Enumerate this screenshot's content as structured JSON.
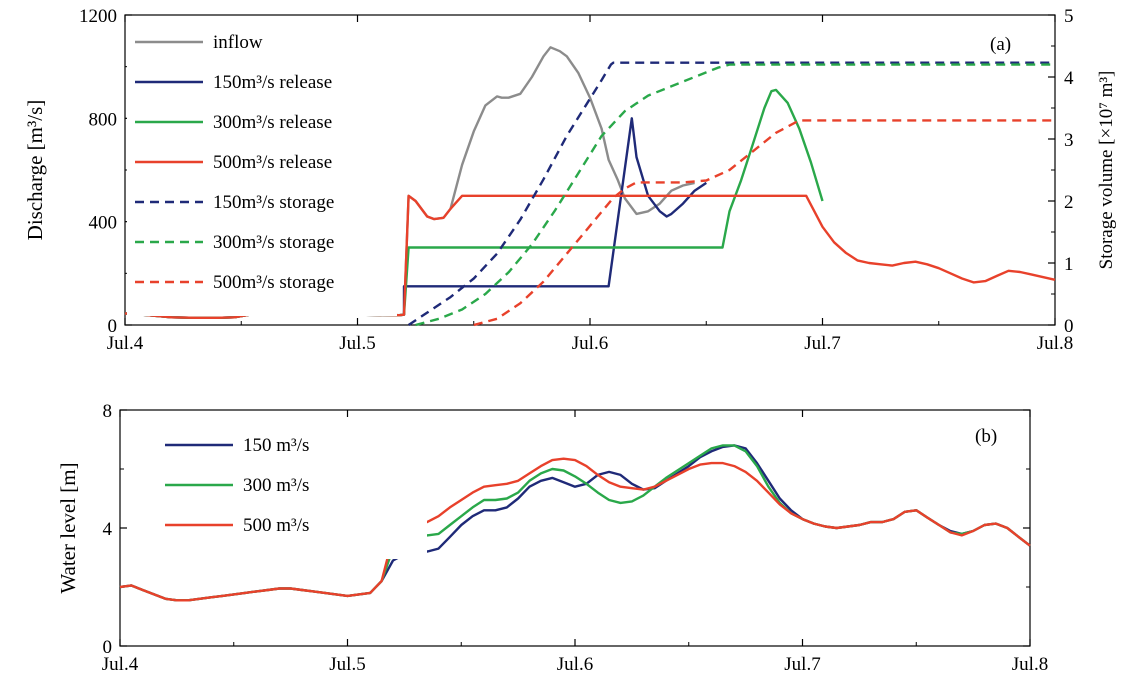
{
  "chart_data": [
    {
      "panel_label": "(a)",
      "type": "line",
      "x_ticks": [
        "Jul.4",
        "Jul.5",
        "Jul.6",
        "Jul.7",
        "Jul.8"
      ],
      "xlim": [
        4,
        8
      ],
      "ylabel_left": "Discharge [m³/s]",
      "ylim_left": [
        0,
        1200
      ],
      "yticks_left": [
        "0",
        "400",
        "800",
        "1200"
      ],
      "ylabel_right": "Storage volume [×10⁷ m³]",
      "ylim_right": [
        0,
        5
      ],
      "yticks_right": [
        "0",
        "1",
        "2",
        "3",
        "4",
        "5"
      ],
      "series": [
        {
          "name": "inflow",
          "axis": "left",
          "style": "solid",
          "color": "#8c8c8c",
          "x": [
            4.0,
            4.1,
            4.2,
            4.3,
            4.4,
            4.47,
            4.6,
            4.8,
            5.0,
            5.18,
            5.2,
            5.22,
            5.25,
            5.3,
            5.33,
            5.37,
            5.4,
            5.45,
            5.5,
            5.55,
            5.6,
            5.62,
            5.65,
            5.7,
            5.75,
            5.8,
            5.83,
            5.87,
            5.9,
            5.95,
            6.0,
            6.05,
            6.08,
            6.12,
            6.15,
            6.2,
            6.25,
            6.3,
            6.33,
            6.35,
            6.4,
            6.45
          ],
          "y": [
            45,
            38,
            30,
            28,
            28,
            30,
            50,
            45,
            40,
            38,
            40,
            500,
            480,
            420,
            410,
            415,
            450,
            620,
            750,
            850,
            885,
            880,
            880,
            895,
            960,
            1040,
            1075,
            1060,
            1040,
            975,
            880,
            760,
            640,
            560,
            490,
            430,
            440,
            470,
            500,
            520,
            540,
            550
          ]
        },
        {
          "name": "150m³/s release",
          "axis": "left",
          "style": "solid",
          "color": "#1f2a78",
          "x": [
            4.0,
            4.1,
            4.2,
            4.3,
            4.4,
            4.47,
            4.6,
            4.8,
            5.0,
            5.18,
            5.2,
            5.2,
            6.08,
            6.18,
            6.2,
            6.25,
            6.3,
            6.33,
            6.35,
            6.4,
            6.45,
            6.5
          ],
          "y": [
            45,
            38,
            30,
            28,
            28,
            30,
            50,
            45,
            40,
            38,
            40,
            150,
            150,
            800,
            650,
            500,
            440,
            420,
            430,
            470,
            520,
            550
          ]
        },
        {
          "name": "300m³/s release",
          "axis": "left",
          "style": "solid",
          "color": "#2aa84a",
          "x": [
            4.0,
            4.1,
            4.2,
            4.3,
            4.4,
            4.47,
            4.6,
            4.8,
            5.0,
            5.18,
            5.2,
            5.22,
            6.57,
            6.6,
            6.65,
            6.7,
            6.75,
            6.78,
            6.8,
            6.85,
            6.9,
            6.95,
            7.0
          ],
          "y": [
            45,
            38,
            30,
            28,
            28,
            30,
            50,
            45,
            40,
            38,
            40,
            300,
            300,
            440,
            560,
            700,
            840,
            905,
            910,
            860,
            760,
            630,
            480
          ]
        },
        {
          "name": "500m³/s release",
          "axis": "left",
          "style": "solid",
          "color": "#e8412b",
          "x": [
            4.0,
            4.1,
            4.2,
            4.3,
            4.4,
            4.47,
            4.6,
            4.8,
            5.0,
            5.18,
            5.2,
            5.22,
            5.25,
            5.3,
            5.33,
            5.37,
            5.4,
            5.45,
            6.93,
            7.0,
            7.05,
            7.1,
            7.15,
            7.2,
            7.25,
            7.3,
            7.35,
            7.4,
            7.45,
            7.5,
            7.55,
            7.6,
            7.65,
            7.7,
            7.75,
            7.8,
            7.85,
            7.9,
            7.95,
            8.0
          ],
          "y": [
            45,
            38,
            30,
            28,
            28,
            30,
            50,
            45,
            40,
            38,
            40,
            500,
            480,
            420,
            410,
            415,
            450,
            500,
            500,
            380,
            320,
            280,
            250,
            240,
            235,
            230,
            240,
            245,
            235,
            220,
            200,
            180,
            165,
            170,
            190,
            210,
            205,
            195,
            185,
            175
          ]
        },
        {
          "name": "150m³/s storage",
          "axis": "right",
          "style": "dashed",
          "color": "#1f2a78",
          "x": [
            5.22,
            5.3,
            5.4,
            5.5,
            5.6,
            5.7,
            5.8,
            5.9,
            6.0,
            6.05,
            6.09,
            6.1,
            8.0
          ],
          "y": [
            0,
            0.2,
            0.45,
            0.75,
            1.15,
            1.7,
            2.35,
            3.05,
            3.65,
            3.95,
            4.2,
            4.23,
            4.23
          ]
        },
        {
          "name": "300m³/s storage",
          "axis": "right",
          "style": "dashed",
          "color": "#2aa84a",
          "x": [
            5.25,
            5.35,
            5.45,
            5.55,
            5.65,
            5.75,
            5.85,
            5.95,
            6.05,
            6.15,
            6.25,
            6.35,
            6.45,
            6.55,
            6.6,
            8.0
          ],
          "y": [
            0,
            0.1,
            0.25,
            0.5,
            0.85,
            1.3,
            1.85,
            2.45,
            3.05,
            3.45,
            3.7,
            3.85,
            4.0,
            4.15,
            4.2,
            4.2
          ]
        },
        {
          "name": "500m³/s storage",
          "axis": "right",
          "style": "dashed",
          "color": "#e8412b",
          "x": [
            5.5,
            5.6,
            5.7,
            5.8,
            5.9,
            6.0,
            6.1,
            6.15,
            6.2,
            6.3,
            6.4,
            6.5,
            6.6,
            6.7,
            6.8,
            6.9,
            6.95,
            8.0
          ],
          "y": [
            0,
            0.1,
            0.35,
            0.7,
            1.15,
            1.6,
            2.05,
            2.2,
            2.3,
            2.3,
            2.3,
            2.33,
            2.5,
            2.8,
            3.1,
            3.3,
            3.3,
            3.3
          ]
        }
      ]
    },
    {
      "panel_label": "(b)",
      "type": "line",
      "x_ticks": [
        "Jul.4",
        "Jul.5",
        "Jul.6",
        "Jul.7",
        "Jul.8"
      ],
      "xlim": [
        4,
        8
      ],
      "ylabel": "Water level [m]",
      "ylim": [
        0,
        8
      ],
      "yticks": [
        "0",
        "4",
        "8"
      ],
      "series": [
        {
          "name": "150 m³/s",
          "color": "#1f2a78",
          "x": [
            4.0,
            4.05,
            4.1,
            4.15,
            4.2,
            4.25,
            4.3,
            4.35,
            4.4,
            4.45,
            4.5,
            4.55,
            4.6,
            4.65,
            4.7,
            4.75,
            4.8,
            4.85,
            4.9,
            4.95,
            5.0,
            5.05,
            5.1,
            5.15,
            5.2,
            5.25,
            5.3,
            5.35,
            5.4,
            5.45,
            5.5,
            5.55,
            5.6,
            5.65,
            5.7,
            5.75,
            5.8,
            5.85,
            5.9,
            5.95,
            6.0,
            6.05,
            6.1,
            6.15,
            6.2,
            6.25,
            6.3,
            6.35,
            6.4,
            6.45,
            6.5,
            6.55,
            6.6,
            6.65,
            6.7,
            6.75,
            6.8,
            6.85,
            6.9,
            6.95,
            7.0,
            7.05,
            7.1,
            7.15,
            7.2,
            7.25,
            7.3,
            7.35,
            7.4,
            7.45,
            7.5,
            7.55,
            7.6,
            7.65,
            7.7,
            7.75,
            7.8,
            7.85,
            7.9,
            7.95,
            8.0
          ],
          "y": [
            2.0,
            2.05,
            1.9,
            1.75,
            1.6,
            1.55,
            1.55,
            1.6,
            1.65,
            1.7,
            1.75,
            1.8,
            1.85,
            1.9,
            1.95,
            1.95,
            1.9,
            1.85,
            1.8,
            1.75,
            1.7,
            1.75,
            1.8,
            2.2,
            2.9,
            3.1,
            3.4,
            3.2,
            3.3,
            3.7,
            4.1,
            4.4,
            4.6,
            4.6,
            4.7,
            5.0,
            5.4,
            5.6,
            5.7,
            5.55,
            5.4,
            5.5,
            5.8,
            5.9,
            5.8,
            5.5,
            5.3,
            5.35,
            5.6,
            5.85,
            6.1,
            6.4,
            6.6,
            6.75,
            6.8,
            6.7,
            6.2,
            5.6,
            5.0,
            4.6,
            4.3,
            4.15,
            4.05,
            4.0,
            4.05,
            4.1,
            4.2,
            4.2,
            4.3,
            4.55,
            4.6,
            4.35,
            4.1,
            3.9,
            3.8,
            3.9,
            4.1,
            4.15,
            4.0,
            3.7,
            3.4
          ]
        },
        {
          "name": "300 m³/s",
          "color": "#2aa84a",
          "x": [
            4.0,
            4.05,
            4.1,
            4.15,
            4.2,
            4.25,
            4.3,
            4.35,
            4.4,
            4.45,
            4.5,
            4.55,
            4.6,
            4.65,
            4.7,
            4.75,
            4.8,
            4.85,
            4.9,
            4.95,
            5.0,
            5.05,
            5.1,
            5.15,
            5.2,
            5.25,
            5.3,
            5.35,
            5.4,
            5.45,
            5.5,
            5.55,
            5.6,
            5.65,
            5.7,
            5.75,
            5.8,
            5.85,
            5.9,
            5.95,
            6.0,
            6.05,
            6.1,
            6.15,
            6.2,
            6.25,
            6.3,
            6.35,
            6.4,
            6.45,
            6.5,
            6.55,
            6.6,
            6.65,
            6.7,
            6.75,
            6.8,
            6.85,
            6.9,
            6.95,
            7.0,
            7.05,
            7.1,
            7.15,
            7.2,
            7.25,
            7.3,
            7.35,
            7.4,
            7.45,
            7.5,
            7.55,
            7.6,
            7.65,
            7.7,
            7.75,
            7.8,
            7.85,
            7.9,
            7.95,
            8.0
          ],
          "y": [
            2.0,
            2.05,
            1.9,
            1.75,
            1.6,
            1.55,
            1.55,
            1.6,
            1.65,
            1.7,
            1.75,
            1.8,
            1.85,
            1.9,
            1.95,
            1.95,
            1.9,
            1.85,
            1.8,
            1.75,
            1.7,
            1.75,
            1.8,
            2.2,
            3.3,
            4.0,
            3.9,
            3.75,
            3.8,
            4.1,
            4.4,
            4.7,
            4.95,
            4.95,
            5.0,
            5.2,
            5.6,
            5.85,
            6.0,
            5.95,
            5.75,
            5.5,
            5.2,
            4.95,
            4.85,
            4.9,
            5.1,
            5.4,
            5.7,
            5.95,
            6.2,
            6.45,
            6.7,
            6.8,
            6.8,
            6.6,
            6.1,
            5.4,
            4.85,
            4.5,
            4.3,
            4.15,
            4.05,
            4.0,
            4.05,
            4.1,
            4.2,
            4.2,
            4.3,
            4.55,
            4.6,
            4.35,
            4.1,
            3.85,
            3.8,
            3.9,
            4.1,
            4.15,
            4.0,
            3.7,
            3.4
          ]
        },
        {
          "name": "500 m³/s",
          "color": "#e8412b",
          "x": [
            4.0,
            4.05,
            4.1,
            4.15,
            4.2,
            4.25,
            4.3,
            4.35,
            4.4,
            4.45,
            4.5,
            4.55,
            4.6,
            4.65,
            4.7,
            4.75,
            4.8,
            4.85,
            4.9,
            4.95,
            5.0,
            5.05,
            5.1,
            5.15,
            5.2,
            5.25,
            5.3,
            5.35,
            5.4,
            5.45,
            5.5,
            5.55,
            5.6,
            5.65,
            5.7,
            5.75,
            5.8,
            5.85,
            5.9,
            5.95,
            6.0,
            6.05,
            6.1,
            6.15,
            6.2,
            6.25,
            6.3,
            6.35,
            6.4,
            6.45,
            6.5,
            6.55,
            6.6,
            6.65,
            6.7,
            6.75,
            6.8,
            6.85,
            6.9,
            6.95,
            7.0,
            7.05,
            7.1,
            7.15,
            7.2,
            7.25,
            7.3,
            7.35,
            7.4,
            7.45,
            7.5,
            7.55,
            7.6,
            7.65,
            7.7,
            7.75,
            7.8,
            7.85,
            7.9,
            7.95,
            8.0
          ],
          "y": [
            2.0,
            2.05,
            1.9,
            1.75,
            1.6,
            1.55,
            1.55,
            1.6,
            1.65,
            1.7,
            1.75,
            1.8,
            1.85,
            1.9,
            1.95,
            1.95,
            1.9,
            1.85,
            1.8,
            1.75,
            1.7,
            1.75,
            1.8,
            2.2,
            3.7,
            4.5,
            4.3,
            4.2,
            4.4,
            4.7,
            4.95,
            5.2,
            5.4,
            5.45,
            5.5,
            5.6,
            5.85,
            6.1,
            6.3,
            6.35,
            6.3,
            6.1,
            5.8,
            5.55,
            5.4,
            5.35,
            5.3,
            5.4,
            5.6,
            5.8,
            6.0,
            6.15,
            6.2,
            6.2,
            6.1,
            5.9,
            5.6,
            5.2,
            4.8,
            4.5,
            4.3,
            4.15,
            4.05,
            4.0,
            4.05,
            4.1,
            4.2,
            4.2,
            4.3,
            4.55,
            4.6,
            4.35,
            4.1,
            3.85,
            3.75,
            3.9,
            4.1,
            4.15,
            4.0,
            3.7,
            3.4
          ]
        }
      ]
    }
  ]
}
